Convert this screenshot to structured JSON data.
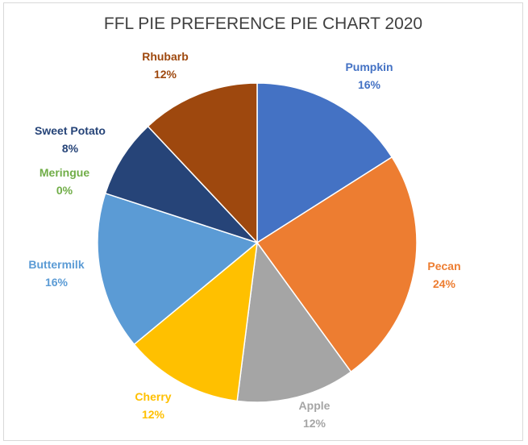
{
  "chart_data": {
    "type": "pie",
    "title": "FFL PIE PREFERENCE PIE CHART 2020",
    "slices": [
      {
        "label": "Pumpkin",
        "value": 16,
        "display": "16%",
        "color": "#4472c4"
      },
      {
        "label": "Pecan",
        "value": 24,
        "display": "24%",
        "color": "#ed7d31"
      },
      {
        "label": "Apple",
        "value": 12,
        "display": "12%",
        "color": "#a5a5a5"
      },
      {
        "label": "Cherry",
        "value": 12,
        "display": "12%",
        "color": "#ffc000"
      },
      {
        "label": "Buttermilk",
        "value": 16,
        "display": "16%",
        "color": "#5b9bd5"
      },
      {
        "label": "Meringue",
        "value": 0,
        "display": "0%",
        "color": "#70ad47"
      },
      {
        "label": "Sweet Potato",
        "value": 8,
        "display": "8%",
        "color": "#264478"
      },
      {
        "label": "Rhubarb",
        "value": 12,
        "display": "12%",
        "color": "#9e480e"
      }
    ],
    "legend": "none",
    "data_labels": "outside-slice"
  }
}
